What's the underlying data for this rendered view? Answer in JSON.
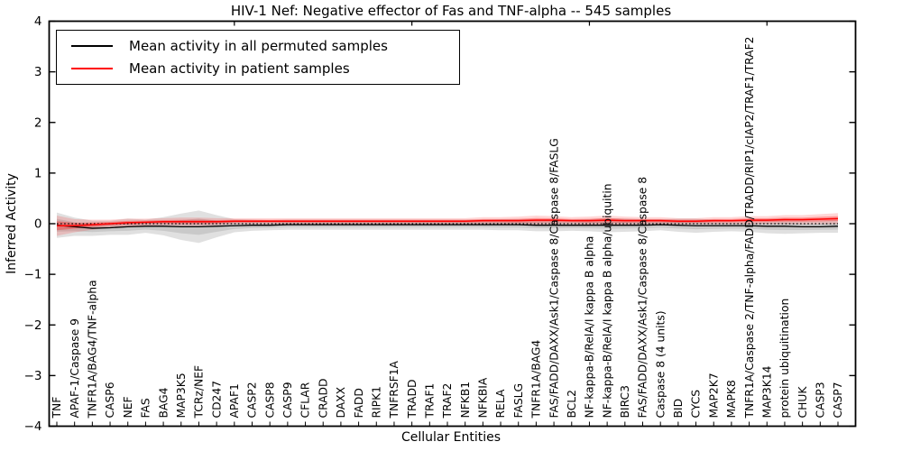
{
  "figure": {
    "title": "HIV-1 Nef: Negative effector of Fas and TNF-alpha -- 545 samples",
    "xlabel": "Cellular Entities",
    "ylabel": "Inferred Activity"
  },
  "legend": {
    "items": [
      {
        "label": "Mean activity in all permuted samples",
        "color": "#000000"
      },
      {
        "label": "Mean activity in patient samples",
        "color": "#ff0000"
      }
    ]
  },
  "colors": {
    "permuted_line": "#000000",
    "patient_line": "#ff0000",
    "permuted_band": "#000000",
    "patient_band": "#ff0000",
    "axis": "#000000",
    "background": "#ffffff"
  },
  "chart_data": {
    "type": "line",
    "title": "HIV-1 Nef: Negative effector of Fas and TNF-alpha -- 545 samples",
    "xlabel": "Cellular Entities",
    "ylabel": "Inferred Activity",
    "ylim": [
      -4,
      4
    ],
    "yticks": [
      4,
      3,
      2,
      1,
      0,
      -1,
      -2,
      -3,
      -4
    ],
    "grid": false,
    "legend_position": "upper left",
    "zero_line": {
      "style": "dotted",
      "color": "#000000",
      "y": 0
    },
    "categories": [
      "TNF",
      "APAF-1/Caspase 9",
      "TNFR1A/BAG4/TNF-alpha",
      "CASP6",
      "NEF",
      "FAS",
      "BAG4",
      "MAP3K5",
      "TCRz/NEF",
      "CD247",
      "APAF1",
      "CASP2",
      "CASP8",
      "CASP9",
      "CFLAR",
      "CRADD",
      "DAXX",
      "FADD",
      "RIPK1",
      "TNFRSF1A",
      "TRADD",
      "TRAF1",
      "TRAF2",
      "NFKB1",
      "NFKBIA",
      "RELA",
      "FASLG",
      "TNFR1A/BAG4",
      "FAS/FADD/DAXX/Ask1/Caspase 8/Caspase 8/FASLG",
      "BCL2",
      "NF-kappa-B/RelA/I kappa B alpha",
      "NF-kappa-B/RelA/I kappa B alpha/ubiquitin",
      "BIRC3",
      "FAS/FADD/DAXX/Ask1/Caspase 8/Caspase 8",
      "Caspase 8 (4 units)",
      "BID",
      "CYCS",
      "MAP2K7",
      "MAPK8",
      "TNFR1A/Caspase 2/TNF-alpha/FADD/TRADD/RIP1/cIAP2/TRAF1/TRAF2",
      "MAP3K14",
      "protein ubiquitination",
      "CHUK",
      "CASP3",
      "CASP7"
    ],
    "series": [
      {
        "name": "Mean activity in all permuted samples",
        "color": "#000000",
        "values": [
          -0.03,
          -0.06,
          -0.09,
          -0.08,
          -0.06,
          -0.05,
          -0.05,
          -0.06,
          -0.06,
          -0.05,
          -0.04,
          -0.03,
          -0.03,
          -0.02,
          -0.02,
          -0.02,
          -0.02,
          -0.02,
          -0.02,
          -0.02,
          -0.02,
          -0.02,
          -0.02,
          -0.02,
          -0.02,
          -0.02,
          -0.02,
          -0.03,
          -0.03,
          -0.03,
          -0.03,
          -0.03,
          -0.03,
          -0.03,
          -0.02,
          -0.03,
          -0.04,
          -0.04,
          -0.04,
          -0.04,
          -0.05,
          -0.05,
          -0.06,
          -0.06,
          -0.05
        ],
        "band_halfwidth": [
          0.25,
          0.18,
          0.15,
          0.14,
          0.16,
          0.13,
          0.18,
          0.26,
          0.32,
          0.22,
          0.13,
          0.11,
          0.1,
          0.1,
          0.1,
          0.1,
          0.1,
          0.1,
          0.1,
          0.1,
          0.1,
          0.1,
          0.1,
          0.1,
          0.1,
          0.11,
          0.11,
          0.12,
          0.12,
          0.11,
          0.12,
          0.14,
          0.13,
          0.12,
          0.11,
          0.13,
          0.14,
          0.12,
          0.11,
          0.12,
          0.14,
          0.15,
          0.13,
          0.12,
          0.13
        ]
      },
      {
        "name": "Mean activity in patient samples",
        "color": "#ff0000",
        "values": [
          -0.04,
          -0.04,
          -0.02,
          0.0,
          0.02,
          0.03,
          0.04,
          0.04,
          0.04,
          0.04,
          0.05,
          0.05,
          0.05,
          0.05,
          0.05,
          0.05,
          0.05,
          0.05,
          0.05,
          0.05,
          0.05,
          0.05,
          0.05,
          0.05,
          0.06,
          0.06,
          0.06,
          0.07,
          0.07,
          0.06,
          0.06,
          0.07,
          0.06,
          0.06,
          0.06,
          0.05,
          0.05,
          0.06,
          0.06,
          0.07,
          0.07,
          0.08,
          0.08,
          0.09,
          0.1
        ],
        "band_halfwidth": [
          0.2,
          0.13,
          0.1,
          0.08,
          0.08,
          0.07,
          0.07,
          0.08,
          0.08,
          0.07,
          0.06,
          0.06,
          0.06,
          0.06,
          0.06,
          0.06,
          0.06,
          0.06,
          0.06,
          0.06,
          0.06,
          0.06,
          0.06,
          0.06,
          0.07,
          0.07,
          0.08,
          0.09,
          0.08,
          0.07,
          0.08,
          0.09,
          0.08,
          0.07,
          0.07,
          0.06,
          0.06,
          0.07,
          0.07,
          0.08,
          0.08,
          0.09,
          0.09,
          0.1,
          0.11
        ]
      }
    ]
  }
}
